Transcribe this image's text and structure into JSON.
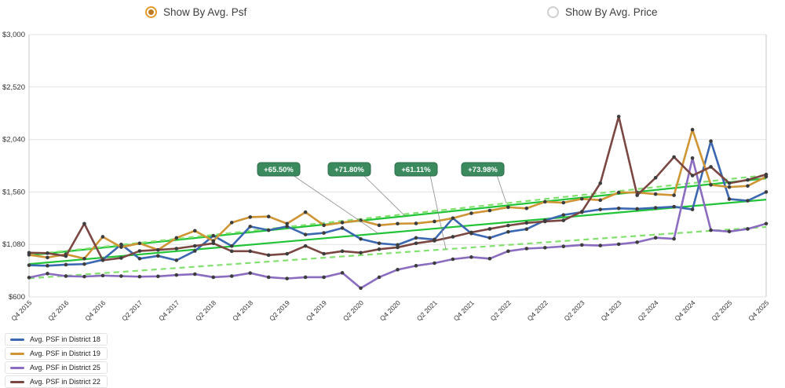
{
  "toggles": {
    "avg_psf_label": "Show By Avg. Psf",
    "avg_price_label": "Show By Avg. Price",
    "selected": "avg_psf",
    "selected_color": "#e59b2c"
  },
  "legend": {
    "items": [
      {
        "label": "Avg. PSF in District 18",
        "color": "#3b68b0"
      },
      {
        "label": "Avg. PSF in District 19",
        "color": "#cf9434"
      },
      {
        "label": "Avg. PSF in District 25",
        "color": "#8a6cc0"
      },
      {
        "label": "Avg. PSF in District 22",
        "color": "#7a4743"
      }
    ]
  },
  "chart_data": {
    "type": "line",
    "title": "",
    "ylabel": "",
    "xlabel": "",
    "ylim": [
      600,
      3000
    ],
    "yticks": [
      600,
      1080,
      1560,
      2040,
      2520,
      3000
    ],
    "ytick_prefix": "$",
    "grid": true,
    "x_quarters": [
      "Q4 2015",
      "Q1 2016",
      "Q2 2016",
      "Q3 2016",
      "Q4 2016",
      "Q1 2017",
      "Q2 2017",
      "Q3 2017",
      "Q4 2017",
      "Q1 2018",
      "Q2 2018",
      "Q3 2018",
      "Q4 2018",
      "Q1 2019",
      "Q2 2019",
      "Q3 2019",
      "Q4 2019",
      "Q1 2020",
      "Q2 2020",
      "Q3 2020",
      "Q4 2020",
      "Q1 2021",
      "Q2 2021",
      "Q3 2021",
      "Q4 2021",
      "Q1 2022",
      "Q2 2022",
      "Q3 2022",
      "Q4 2022",
      "Q1 2023",
      "Q2 2023",
      "Q3 2023",
      "Q4 2023",
      "Q1 2024",
      "Q2 2024",
      "Q3 2024",
      "Q4 2024",
      "Q1 2025",
      "Q2 2025",
      "Q3 2025",
      "Q4 2025"
    ],
    "x_label_every": 2,
    "marker_color": "#3d3d3d",
    "series": [
      {
        "name": "Avg. PSF in District 18",
        "color": "#3b68b0",
        "values": [
          890,
          885,
          895,
          900,
          940,
          1080,
          950,
          975,
          935,
          1020,
          1160,
          1065,
          1244,
          1210,
          1245,
          1170,
          1185,
          1230,
          1130,
          1090,
          1076,
          1140,
          1125,
          1320,
          1180,
          1140,
          1195,
          1220,
          1300,
          1350,
          1375,
          1400,
          1410,
          1405,
          1415,
          1425,
          1400,
          2025,
          1495,
          1480,
          1560
        ]
      },
      {
        "name": "Avg. PSF in District 19",
        "color": "#cf9434",
        "values": [
          985,
          960,
          990,
          950,
          1150,
          1055,
          1090,
          1030,
          1140,
          1205,
          1112,
          1280,
          1330,
          1335,
          1270,
          1375,
          1255,
          1280,
          1300,
          1255,
          1270,
          1272,
          1290,
          1320,
          1365,
          1390,
          1420,
          1410,
          1470,
          1462,
          1497,
          1485,
          1555,
          1555,
          1540,
          1530,
          2130,
          1625,
          1605,
          1615,
          1700
        ]
      },
      {
        "name": "Avg. PSF in District 25",
        "color": "#8a6cc0",
        "values": [
          777,
          813,
          790,
          786,
          795,
          790,
          785,
          788,
          800,
          808,
          780,
          790,
          818,
          780,
          768,
          780,
          780,
          820,
          680,
          780,
          849,
          885,
          909,
          945,
          964,
          950,
          1018,
          1042,
          1050,
          1062,
          1075,
          1070,
          1082,
          1100,
          1141,
          1131,
          1870,
          1210,
          1198,
          1222,
          1270
        ]
      },
      {
        "name": "Avg. PSF in District 22",
        "color": "#7a4743",
        "values": [
          1004,
          1000,
          973,
          1270,
          935,
          956,
          1020,
          1030,
          1042,
          1066,
          1090,
          1018,
          1018,
          982,
          994,
          1066,
          994,
          1018,
          1004,
          1036,
          1053,
          1090,
          1114,
          1150,
          1190,
          1222,
          1253,
          1277,
          1290,
          1300,
          1380,
          1640,
          2250,
          1530,
          1690,
          1880,
          1710,
          1790,
          1640,
          1670,
          1720
        ]
      }
    ],
    "trendlines": [
      {
        "series": "Avg. PSF in District 18",
        "label": "+65.50%",
        "start": 900,
        "end": 1490,
        "style": "solid",
        "color": "#21c437",
        "badge_cx": 355,
        "pointer_x": 482
      },
      {
        "series": "Avg. PSF in District 19",
        "label": "+71.80%",
        "start": 980,
        "end": 1684,
        "style": "solid",
        "color": "#21c437",
        "badge_cx": 445,
        "pointer_x": 516
      },
      {
        "series": "Avg. PSF in District 25",
        "label": "+61.11%",
        "start": 770,
        "end": 1240,
        "style": "dashed",
        "color": "#82e06e",
        "badge_cx": 530,
        "pointer_x": 568
      },
      {
        "series": "Avg. PSF in District 22",
        "label": "+73.98%",
        "start": 985,
        "end": 1714,
        "style": "dashed",
        "color": "#82e06e",
        "badge_cx": 615,
        "pointer_x": 645
      }
    ],
    "badge": {
      "fill": "#3a8a5e",
      "stroke": "#2d6b49",
      "text_color": "#ffffff",
      "y_top": 177,
      "height": 17
    },
    "axis_color": "#c9c9c9",
    "gridline_color": "#e3e3e3",
    "tick_text_color": "#333333"
  }
}
